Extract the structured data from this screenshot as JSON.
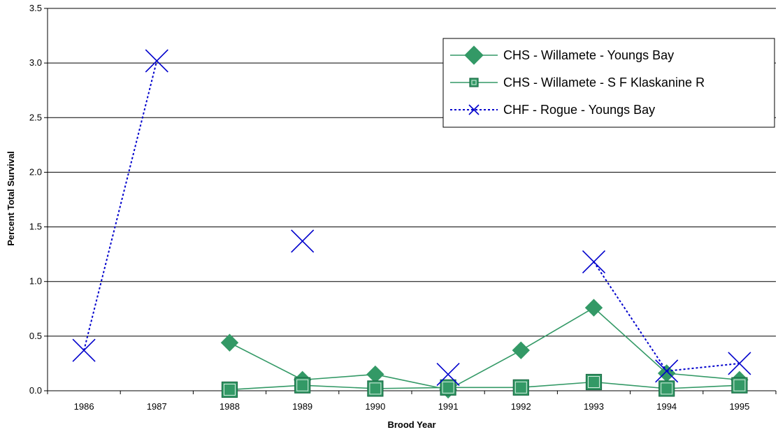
{
  "chart_data": {
    "type": "line",
    "title": "",
    "xlabel": "Brood Year",
    "ylabel": "Percent Total Survival",
    "categories": [
      "1986",
      "1987",
      "1988",
      "1989",
      "1990",
      "1991",
      "1992",
      "1993",
      "1994",
      "1995"
    ],
    "ylim": [
      0,
      3.5
    ],
    "yticks": [
      "0.0",
      "0.5",
      "1.0",
      "1.5",
      "2.0",
      "2.5",
      "3.0",
      "3.5"
    ],
    "grid": "horizontal",
    "legend_position": "top-right",
    "series": [
      {
        "name": "CHS - Willamete - Youngs Bay",
        "color": "#339966",
        "marker": "diamond",
        "line": "solid",
        "values": [
          null,
          null,
          0.44,
          0.1,
          0.15,
          0.01,
          0.37,
          0.76,
          0.16,
          0.1
        ]
      },
      {
        "name": "CHS - Willamete - S F Klaskanine R",
        "color": "#339966",
        "marker": "square",
        "line": "solid",
        "values": [
          null,
          null,
          0.01,
          0.05,
          0.02,
          0.03,
          0.03,
          0.08,
          0.02,
          0.05
        ]
      },
      {
        "name": "CHF - Rogue - Youngs Bay",
        "color": "#0000cc",
        "marker": "x",
        "line": "dotted",
        "values": [
          0.37,
          3.02,
          null,
          1.37,
          null,
          0.15,
          null,
          1.18,
          0.18,
          0.25
        ]
      }
    ]
  }
}
